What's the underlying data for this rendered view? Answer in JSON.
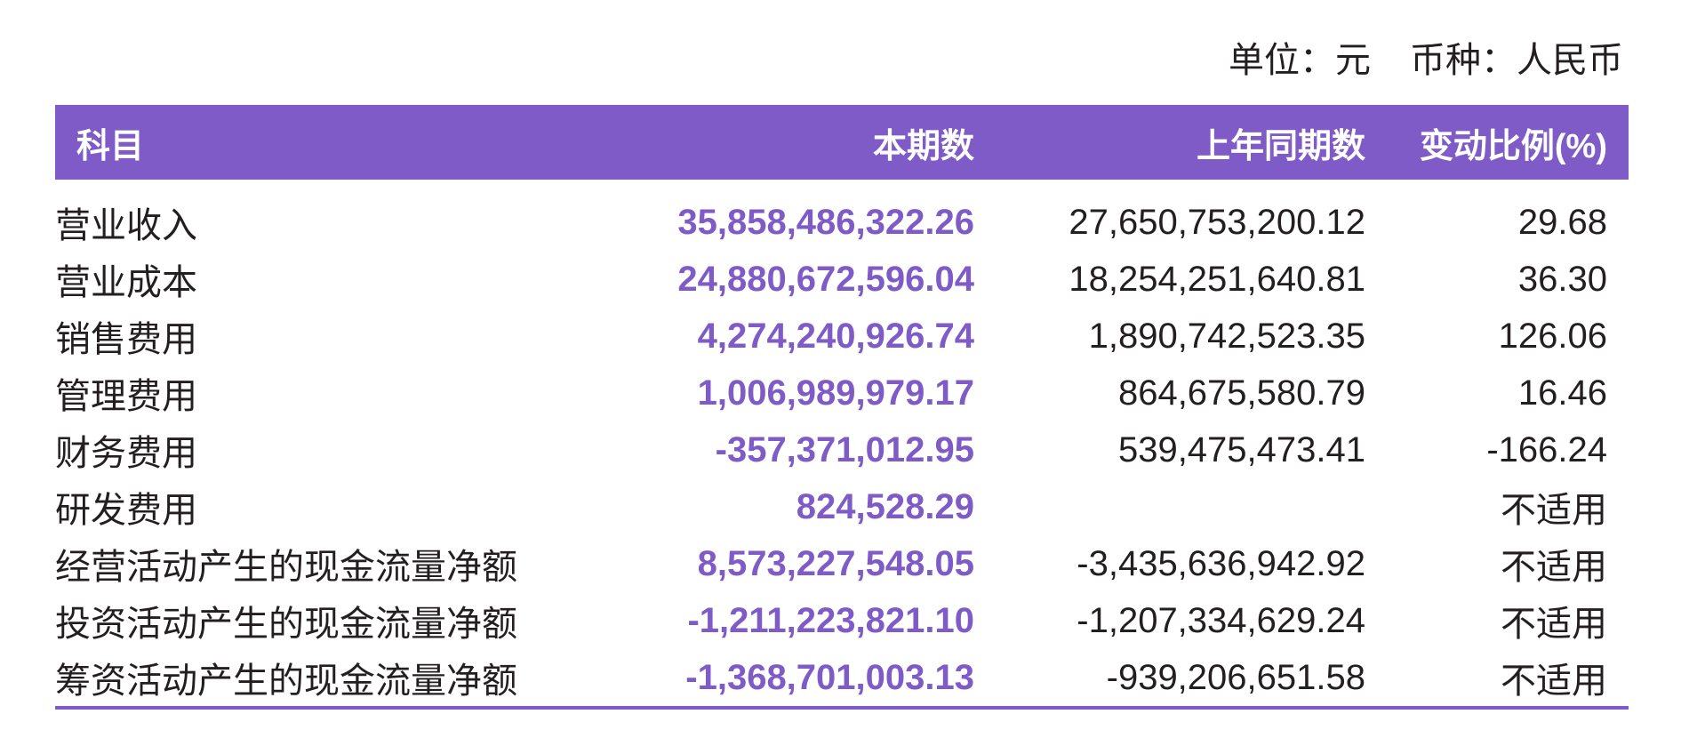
{
  "unit": {
    "unit_text": "单位：元",
    "currency_text": "币种：人民币"
  },
  "table": {
    "headers": [
      "科目",
      "本期数",
      "上年同期数",
      "变动比例(%)"
    ],
    "rows": [
      {
        "item": "营业收入",
        "current": "35,858,486,322.26",
        "previous": "27,650,753,200.12",
        "change": "29.68"
      },
      {
        "item": "营业成本",
        "current": "24,880,672,596.04",
        "previous": "18,254,251,640.81",
        "change": "36.30"
      },
      {
        "item": "销售费用",
        "current": "4,274,240,926.74",
        "previous": "1,890,742,523.35",
        "change": "126.06"
      },
      {
        "item": "管理费用",
        "current": "1,006,989,979.17",
        "previous": "864,675,580.79",
        "change": "16.46"
      },
      {
        "item": "财务费用",
        "current": "-357,371,012.95",
        "previous": "539,475,473.41",
        "change": "-166.24"
      },
      {
        "item": "研发费用",
        "current": "824,528.29",
        "previous": "",
        "change": "不适用"
      },
      {
        "item": "经营活动产生的现金流量净额",
        "current": "8,573,227,548.05",
        "previous": "-3,435,636,942.92",
        "change": "不适用"
      },
      {
        "item": "投资活动产生的现金流量净额",
        "current": "-1,211,223,821.10",
        "previous": "-1,207,334,629.24",
        "change": "不适用"
      },
      {
        "item": "筹资活动产生的现金流量净额",
        "current": "-1,368,701,003.13",
        "previous": "-939,206,651.58",
        "change": "不适用"
      }
    ]
  },
  "colors": {
    "accent": "#7e5bc7",
    "text": "#231f20"
  }
}
